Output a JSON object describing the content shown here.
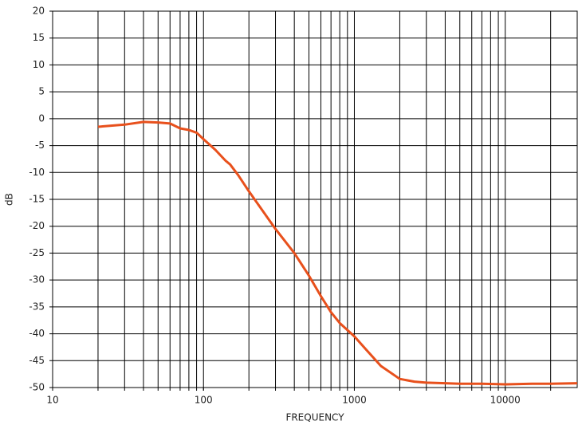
{
  "chart_data": {
    "type": "line",
    "x_label": "FREQUENCY",
    "y_label": "dB",
    "log_x": true,
    "xlim": [
      10,
      30000
    ],
    "ylim": [
      -50,
      20
    ],
    "xticks": [
      10,
      100,
      1000,
      10000
    ],
    "xgrid": [
      20,
      30,
      40,
      50,
      60,
      70,
      80,
      90,
      100,
      200,
      300,
      400,
      500,
      600,
      700,
      800,
      900,
      1000,
      2000,
      3000,
      4000,
      5000,
      6000,
      7000,
      8000,
      9000,
      10000,
      20000
    ],
    "yticks": [
      20,
      15,
      10,
      5,
      0,
      -5,
      -10,
      -15,
      -20,
      -25,
      -30,
      -35,
      -40,
      -45,
      -50
    ],
    "grid": true,
    "x": [
      20,
      30,
      40,
      50,
      60,
      70,
      80,
      90,
      100,
      120,
      140,
      150,
      170,
      200,
      300,
      400,
      500,
      600,
      700,
      800,
      1000,
      1200,
      1500,
      2000,
      2500,
      3000,
      4000,
      5000,
      7000,
      10000,
      15000,
      20000,
      30000
    ],
    "series": [
      {
        "color": "#e8501c",
        "values": [
          -1.5,
          -1.1,
          -0.6,
          -0.7,
          -0.9,
          -1.8,
          -2.1,
          -2.6,
          -3.8,
          -5.8,
          -7.8,
          -8.5,
          -10.5,
          -13.5,
          -20.5,
          -25,
          -29.2,
          -33,
          -36,
          -38,
          -40.5,
          -43,
          -46,
          -48.4,
          -48.9,
          -49.1,
          -49.2,
          -49.3,
          -49.3,
          -49.4,
          -49.3,
          -49.3,
          -49.2
        ]
      }
    ]
  }
}
